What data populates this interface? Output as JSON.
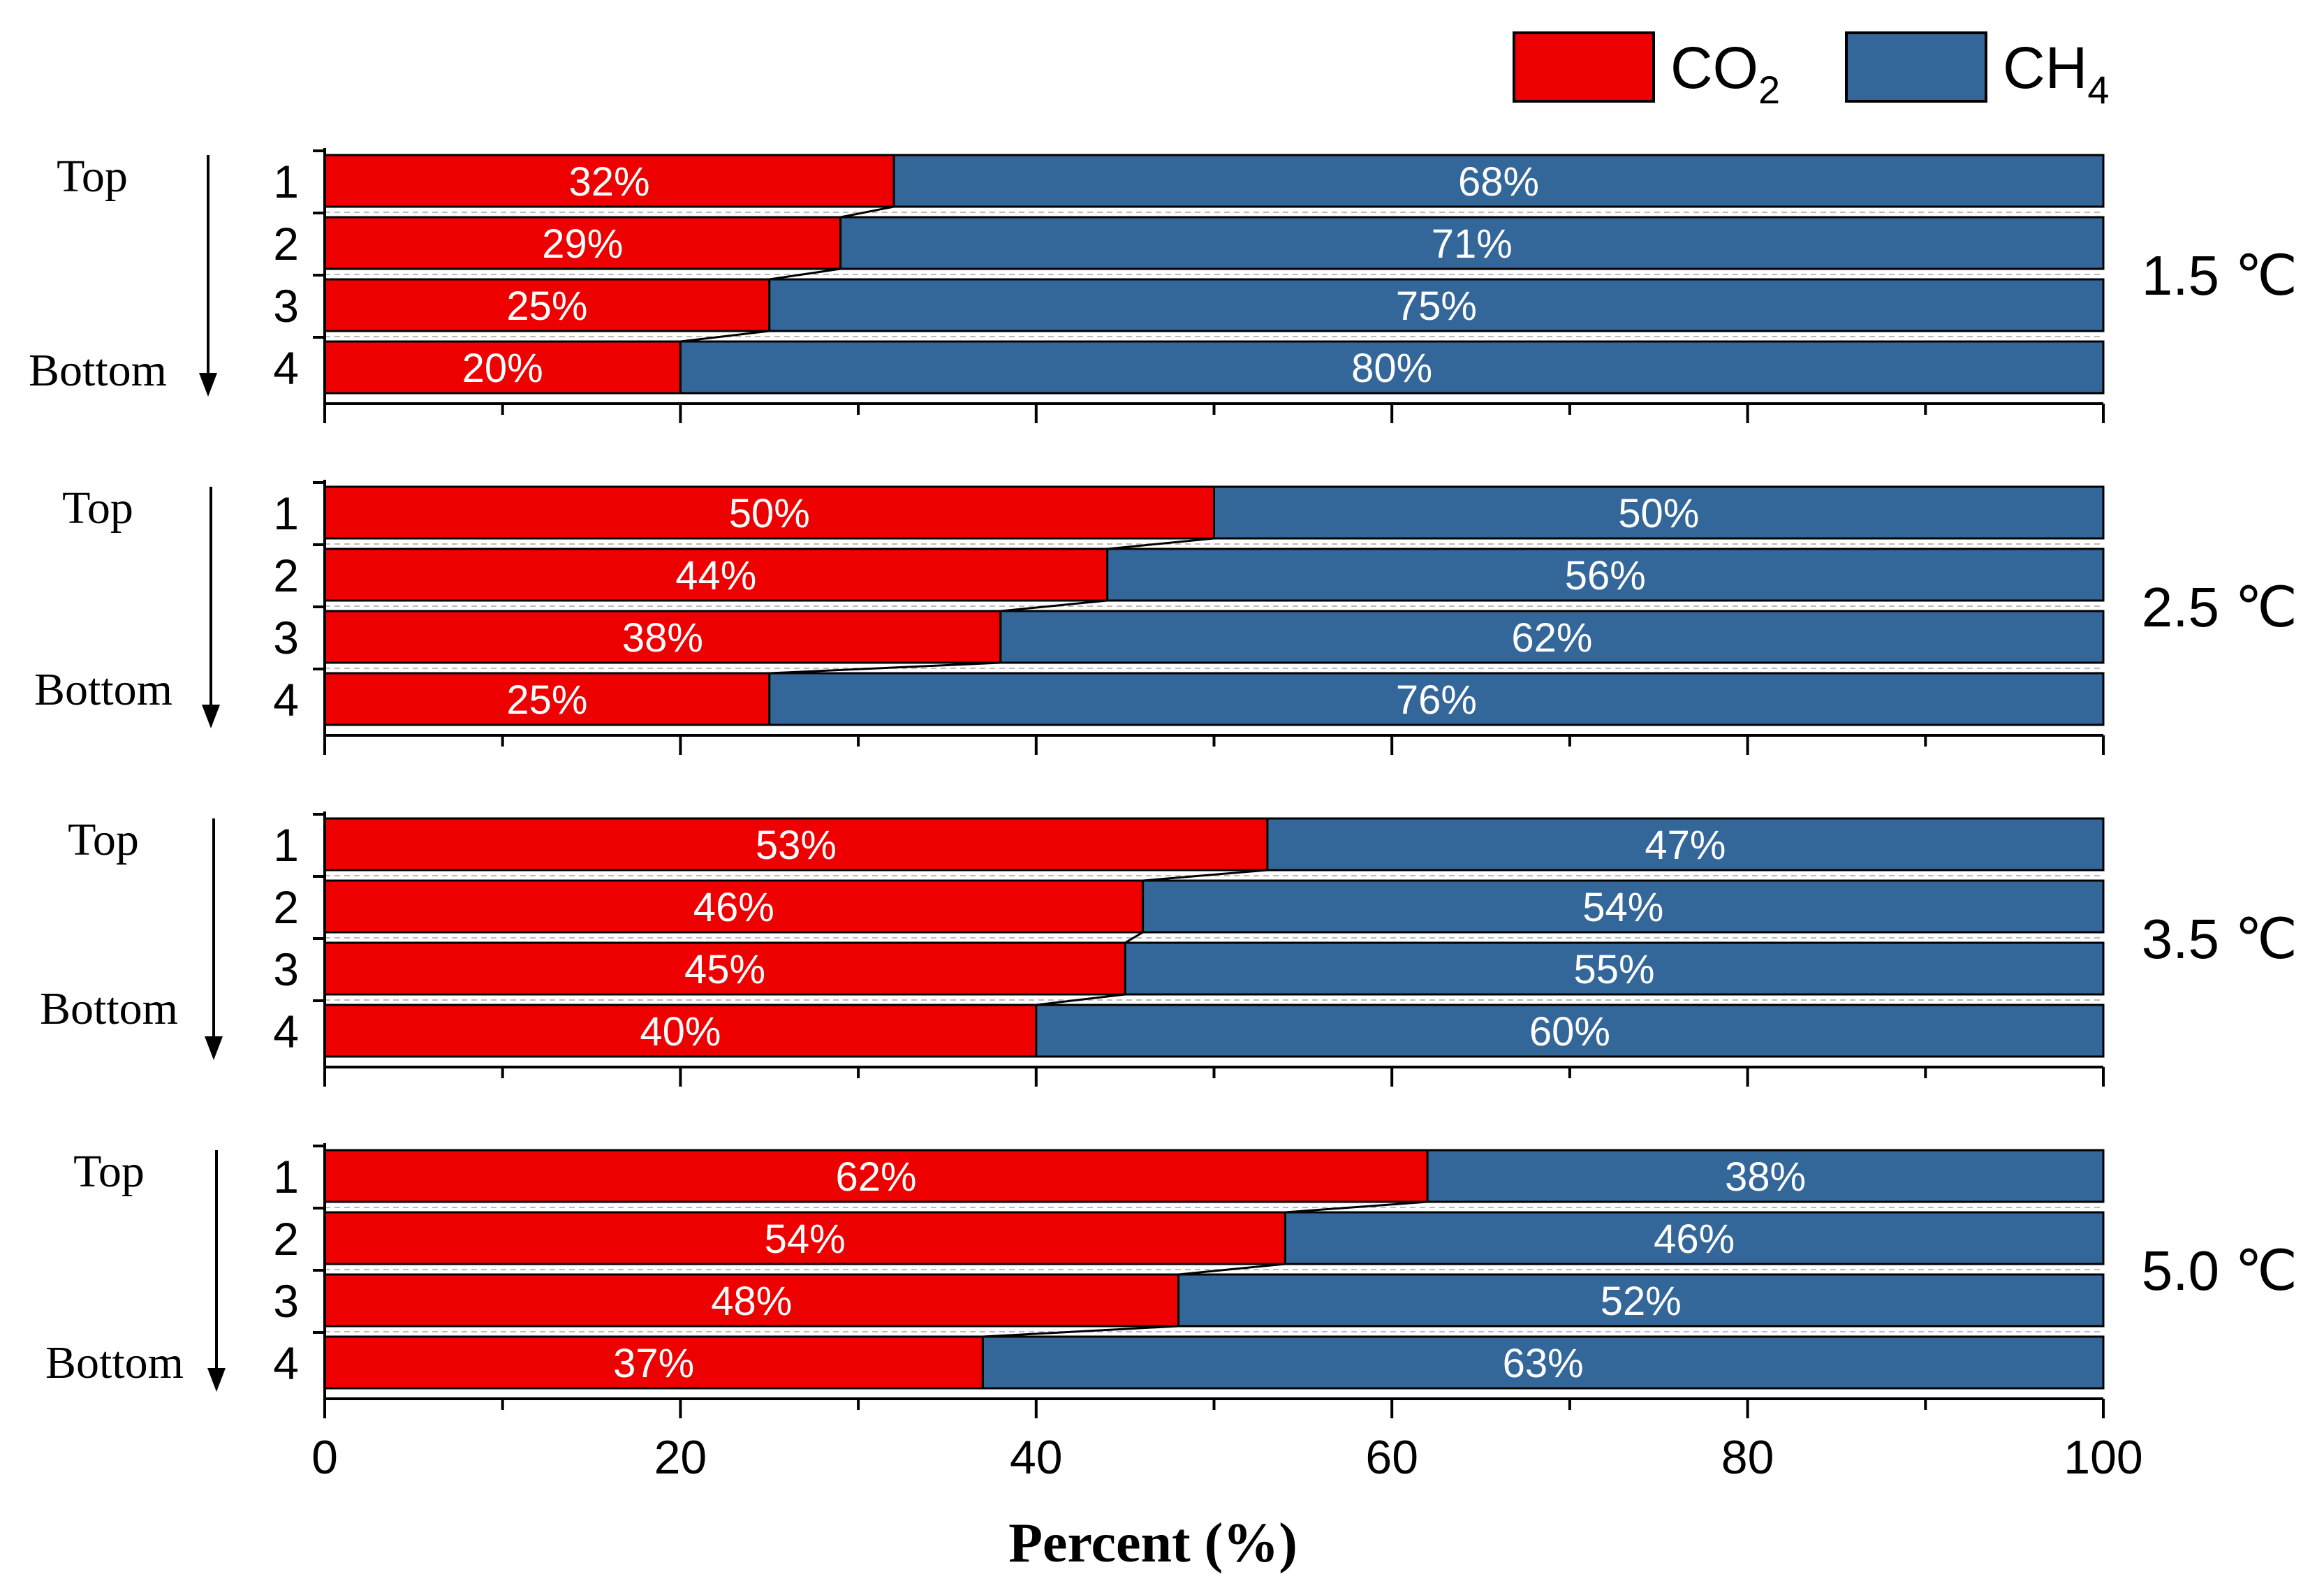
{
  "chart_data": {
    "type": "bar",
    "orientation": "horizontal",
    "stacked": true,
    "title": "",
    "xlabel": "Percent (%)",
    "ylabel": "",
    "xlim": [
      0,
      100
    ],
    "x_ticks": [
      "0",
      "20",
      "40",
      "60",
      "80",
      "100"
    ],
    "grid": false,
    "legend_position": "top-right",
    "legend": [
      {
        "label": "CO",
        "sub": "2",
        "color": "#ee0000"
      },
      {
        "label": "CH",
        "sub": "4",
        "color": "#336699"
      }
    ],
    "categories": [
      "1",
      "2",
      "3",
      "4"
    ],
    "top_label": "Top",
    "bottom_label": "Bottom",
    "panels": [
      {
        "temperature": "1.5 ℃",
        "co2": [
          32,
          29,
          25,
          20
        ],
        "ch4": [
          68,
          71,
          75,
          80
        ],
        "co2_labels": [
          "32%",
          "29%",
          "25%",
          "20%"
        ],
        "ch4_labels": [
          "68%",
          "71%",
          "75%",
          "80%"
        ]
      },
      {
        "temperature": "2.5 ℃",
        "co2": [
          50,
          44,
          38,
          25
        ],
        "ch4": [
          50,
          56,
          62,
          76
        ],
        "co2_labels": [
          "50%",
          "44%",
          "38%",
          "25%"
        ],
        "ch4_labels": [
          "50%",
          "56%",
          "62%",
          "76%"
        ]
      },
      {
        "temperature": "3.5 ℃",
        "co2": [
          53,
          46,
          45,
          40
        ],
        "ch4": [
          47,
          54,
          55,
          60
        ],
        "co2_labels": [
          "53%",
          "46%",
          "45%",
          "40%"
        ],
        "ch4_labels": [
          "47%",
          "54%",
          "55%",
          "60%"
        ]
      },
      {
        "temperature": "5.0 ℃",
        "co2": [
          62,
          54,
          48,
          37
        ],
        "ch4": [
          38,
          46,
          52,
          63
        ],
        "co2_labels": [
          "62%",
          "54%",
          "48%",
          "37%"
        ],
        "ch4_labels": [
          "38%",
          "46%",
          "52%",
          "63%"
        ]
      }
    ]
  }
}
